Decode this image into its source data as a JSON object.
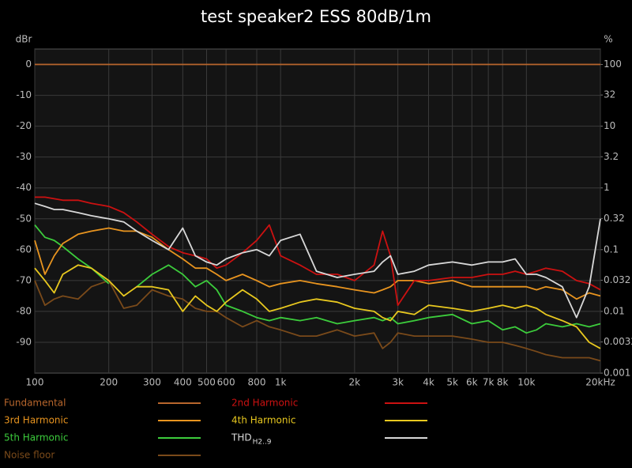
{
  "chart_data": {
    "type": "line",
    "title": "test speaker2 ESS 80dB/1m",
    "ylabel": "dBr",
    "y2label": "%",
    "xscale": "log",
    "y2scale": "log",
    "grid": true,
    "xlim": [
      100,
      20000
    ],
    "ylim": [
      -100,
      5
    ],
    "y2lim": [
      0.001,
      177.8
    ],
    "xticks": [
      100,
      200,
      300,
      400,
      500,
      600,
      800,
      {
        "value": 1000,
        "label": "1k"
      },
      {
        "value": 2000,
        "label": "2k"
      },
      {
        "value": 3000,
        "label": "3k"
      },
      {
        "value": 4000,
        "label": "4k"
      },
      {
        "value": 5000,
        "label": "5k"
      },
      {
        "value": 6000,
        "label": "6k"
      },
      {
        "value": 7000,
        "label": "7k"
      },
      {
        "value": 8000,
        "label": "8k"
      },
      {
        "value": 10000,
        "label": "10k"
      },
      {
        "value": 20000,
        "label": "20kHz"
      }
    ],
    "yticks": [
      0,
      -10,
      -20,
      -30,
      -40,
      -50,
      -60,
      -70,
      -80,
      -90
    ],
    "y2ticks": [
      100,
      32,
      10,
      3.2,
      1,
      0.32,
      0.1,
      0.032,
      0.01,
      0.0032,
      0.001
    ],
    "x": [
      100,
      110,
      120,
      130,
      150,
      170,
      200,
      230,
      260,
      300,
      350,
      400,
      450,
      500,
      550,
      600,
      700,
      800,
      900,
      1000,
      1200,
      1400,
      1700,
      2000,
      2400,
      2600,
      2800,
      3000,
      3500,
      4000,
      5000,
      6000,
      7000,
      8000,
      9000,
      10000,
      11000,
      12000,
      14000,
      16000,
      18000,
      20000
    ],
    "series": [
      {
        "name": "Fundamental",
        "color": "#b8662c",
        "values": [
          0,
          0,
          0,
          0,
          0,
          0,
          0,
          0,
          0,
          0,
          0,
          0,
          0,
          0,
          0,
          0,
          0,
          0,
          0,
          0,
          0,
          0,
          0,
          0,
          0,
          0,
          0,
          0,
          0,
          0,
          0,
          0,
          0,
          0,
          0,
          0,
          0,
          0,
          0,
          0,
          0,
          0
        ]
      },
      {
        "name": "2nd Harmonic",
        "color": "#cc1111",
        "values": [
          -43,
          -43,
          -43.5,
          -44,
          -44,
          -45,
          -46,
          -48,
          -51,
          -55,
          -59,
          -61,
          -62,
          -63,
          -66,
          -65,
          -61,
          -57,
          -52,
          -62,
          -65,
          -68,
          -68,
          -70,
          -65,
          -54,
          -62,
          -78,
          -70,
          -70,
          -69,
          -69,
          -68,
          -68,
          -67,
          -68,
          -67,
          -66,
          -67,
          -70,
          -71,
          -73
        ]
      },
      {
        "name": "3rd Harmonic",
        "color": "#e8941f",
        "values": [
          -57,
          -68,
          -62,
          -58,
          -55,
          -54,
          -53,
          -54,
          -54,
          -56,
          -60,
          -63,
          -66,
          -66,
          -68,
          -70,
          -68,
          -70,
          -72,
          -71,
          -70,
          -71,
          -72,
          -73,
          -74,
          -73,
          -72,
          -70,
          -70,
          -71,
          -70,
          -72,
          -72,
          -72,
          -72,
          -72,
          -73,
          -72,
          -73,
          -76,
          -74,
          -75
        ]
      },
      {
        "name": "4th Harmonic",
        "color": "#e8c81f",
        "values": [
          -66,
          -70,
          -74,
          -68,
          -65,
          -66,
          -70,
          -75,
          -72,
          -72,
          -73,
          -80,
          -75,
          -78,
          -80,
          -77,
          -73,
          -76,
          -80,
          -79,
          -77,
          -76,
          -77,
          -79,
          -80,
          -82,
          -83,
          -80,
          -81,
          -78,
          -79,
          -80,
          -79,
          -78,
          -79,
          -78,
          -79,
          -81,
          -83,
          -85,
          -90,
          -92
        ]
      },
      {
        "name": "5th Harmonic",
        "color": "#3ccc3c",
        "values": [
          -52,
          -56,
          -57,
          -59,
          -63,
          -66,
          -71,
          null,
          -72,
          -68,
          -65,
          -68,
          -72,
          -70,
          -73,
          -78,
          -80,
          -82,
          -83,
          -82,
          -83,
          -82,
          -84,
          -83,
          -82,
          -83,
          -82,
          -84,
          -83,
          -82,
          -81,
          -84,
          -83,
          -86,
          -85,
          -87,
          -86,
          -84,
          -85,
          -84,
          -85,
          -84
        ]
      },
      {
        "name": "THD",
        "name_sub": "H2..9",
        "color": "#d8d8d8",
        "values": [
          -45,
          -46,
          -47,
          -47,
          -48,
          -49,
          -50,
          -51,
          -54,
          -57,
          -60,
          -53,
          -62,
          -64,
          -65,
          -63,
          -61,
          -60,
          -62,
          -57,
          -55,
          -67,
          -69,
          -68,
          -67,
          -64,
          -62,
          -68,
          -67,
          -65,
          -64,
          -65,
          -64,
          -64,
          -63,
          -68,
          -68,
          -69,
          -72,
          -82,
          -72,
          -50
        ]
      },
      {
        "name": "Noise floor",
        "color": "#7a4a1a",
        "values": [
          -70,
          -78,
          -76,
          -75,
          -76,
          -72,
          -70,
          -79,
          -78,
          -73,
          -75,
          -76,
          -79,
          -80,
          -80,
          -82,
          -85,
          -83,
          -85,
          -86,
          -88,
          -88,
          -86,
          -88,
          -87,
          -92,
          -90,
          -87,
          -88,
          -88,
          -88,
          -89,
          -90,
          -90,
          -91,
          -92,
          -93,
          -94,
          -95,
          -95,
          -95,
          -96
        ]
      }
    ]
  }
}
